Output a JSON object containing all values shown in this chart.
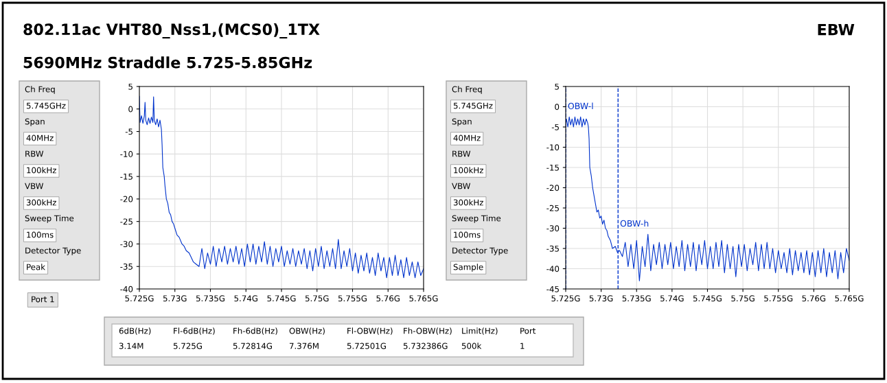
{
  "chart_data": [
    {
      "type": "line",
      "title": "802.11ac VHT80_Nss1,(MCS0)_1TX",
      "subtitle": "5690MHz Straddle 5.725-5.85GHz",
      "annotations": [
        "EBW",
        "Ch Freq",
        "5.745GHz",
        "Span",
        "40MHz",
        "RBW",
        "100kHz",
        "VBW",
        "300kHz",
        "Sweep Time",
        "100ms",
        "Detector Type",
        "Peak",
        "Port 1"
      ],
      "series": [
        {
          "color": "#0033cc",
          "x": [
            5.725,
            5.7251,
            5.7253,
            5.7255,
            5.7257,
            5.7258,
            5.7259,
            5.7261,
            5.7263,
            5.7265,
            5.7267,
            5.7269,
            5.727,
            5.7271,
            5.7273,
            5.7275,
            5.7277,
            5.7279,
            5.7281,
            5.7282,
            5.7283,
            5.7285,
            5.7286,
            5.7288,
            5.729,
            5.7292,
            5.7294,
            5.7296,
            5.7298,
            5.73,
            5.7303,
            5.7306,
            5.731,
            5.7313,
            5.7316,
            5.732,
            5.7323,
            5.7326,
            5.733,
            5.7334,
            5.7338,
            5.7342,
            5.7346,
            5.735,
            5.7354,
            5.7358,
            5.7362,
            5.7366,
            5.737,
            5.7374,
            5.7378,
            5.7382,
            5.7386,
            5.739,
            5.7394,
            5.7398,
            5.7402,
            5.7406,
            5.741,
            5.7414,
            5.7418,
            5.7422,
            5.7426,
            5.743,
            5.7434,
            5.7438,
            5.7442,
            5.7446,
            5.745,
            5.7454,
            5.7458,
            5.7462,
            5.7466,
            5.747,
            5.7474,
            5.7478,
            5.7482,
            5.7486,
            5.749,
            5.7494,
            5.7498,
            5.7502,
            5.7506,
            5.751,
            5.7514,
            5.7518,
            5.7522,
            5.7526,
            5.753,
            5.7534,
            5.7538,
            5.7542,
            5.7546,
            5.755,
            5.7554,
            5.7558,
            5.7562,
            5.7566,
            5.757,
            5.7574,
            5.7578,
            5.7582,
            5.7586,
            5.759,
            5.7594,
            5.7598,
            5.7602,
            5.7606,
            5.761,
            5.7614,
            5.7618,
            5.7622,
            5.7626,
            5.763,
            5.7634,
            5.7638,
            5.7642,
            5.7646,
            5.765
          ],
          "values": [
            2.8,
            -3,
            -1.5,
            -3.2,
            -1.5,
            1.5,
            -2.5,
            -3.5,
            -2,
            -3.2,
            -1.8,
            -3,
            2.7,
            -2.5,
            -3.5,
            -2.2,
            -4,
            -2.5,
            -4.5,
            -8,
            -13,
            -15,
            -17,
            -20,
            -21,
            -23,
            -23.5,
            -25,
            -25.5,
            -26.5,
            -28,
            -28.5,
            -30,
            -30.5,
            -31.5,
            -32,
            -33,
            -34,
            -34.5,
            -35,
            -31,
            -35.5,
            -32,
            -34.5,
            -30.5,
            -35,
            -31,
            -34,
            -30.5,
            -34.5,
            -31,
            -34,
            -30.5,
            -34.5,
            -31,
            -35,
            -30,
            -34,
            -30,
            -34.5,
            -30.5,
            -34,
            -29.5,
            -34.5,
            -30.5,
            -35,
            -31,
            -34,
            -30.5,
            -35,
            -31.5,
            -34.5,
            -31,
            -35,
            -31.5,
            -34.5,
            -31,
            -35.5,
            -31.5,
            -36,
            -31,
            -35,
            -30.5,
            -35.5,
            -31.5,
            -35,
            -31,
            -35.5,
            -29,
            -35.5,
            -31.5,
            -35,
            -31,
            -36,
            -32,
            -36.5,
            -32.5,
            -36,
            -32,
            -36.5,
            -33,
            -37,
            -32,
            -36,
            -33,
            -37.5,
            -33,
            -37,
            -32.5,
            -37,
            -33.5,
            -37.5,
            -33,
            -37,
            -34,
            -37.5,
            -34,
            -37,
            -35.5
          ]
        }
      ],
      "xlim": [
        5.725,
        5.765
      ],
      "xticks": [
        {
          "value": 5.725,
          "label": "5.725G"
        },
        {
          "value": 5.73,
          "label": "5.73G"
        },
        {
          "value": 5.735,
          "label": "5.735G"
        },
        {
          "value": 5.74,
          "label": "5.74G"
        },
        {
          "value": 5.745,
          "label": "5.745G"
        },
        {
          "value": 5.75,
          "label": "5.75G"
        },
        {
          "value": 5.755,
          "label": "5.755G"
        },
        {
          "value": 5.76,
          "label": "5.76G"
        },
        {
          "value": 5.765,
          "label": "5.765G"
        }
      ],
      "ylim": [
        -40,
        5
      ],
      "yticks": [
        -40,
        -35,
        -30,
        -25,
        -20,
        -15,
        -10,
        -5,
        0,
        5
      ],
      "grid": true
    },
    {
      "type": "line",
      "annotations": [
        "Ch Freq",
        "5.745GHz",
        "Span",
        "40MHz",
        "RBW",
        "100kHz",
        "VBW",
        "300kHz",
        "Sweep Time",
        "100ms",
        "Detector Type",
        "Sample",
        "6dB(Hz)",
        "Fl-6dB(Hz)",
        "Fh-6dB(Hz)",
        "OBW(Hz)",
        "Fl-OBW(Hz)",
        "Fh-OBW(Hz)",
        "Limit(Hz)",
        "Port",
        "3.14M",
        "5.725G",
        "5.72814G",
        "7.376M",
        "5.72501G",
        "5.732386G",
        "500k",
        "1",
        {
          "text": "OBW-l",
          "x": 5.72501,
          "y": 0
        },
        {
          "text": "OBW-h",
          "x": 5.732386,
          "y": -29
        }
      ],
      "ref_lines": [
        {
          "axis": "x",
          "value": 5.72501,
          "color": "#0033cc",
          "line_style": "dashed"
        },
        {
          "axis": "x",
          "value": 5.732386,
          "color": "#0033cc",
          "line_style": "dashed"
        }
      ],
      "series": [
        {
          "color": "#0033cc",
          "x": [
            5.725,
            5.7251,
            5.7253,
            5.7255,
            5.7257,
            5.7259,
            5.7261,
            5.7263,
            5.7265,
            5.7267,
            5.7269,
            5.7271,
            5.7273,
            5.7275,
            5.7277,
            5.7279,
            5.7281,
            5.7282,
            5.7283,
            5.7284,
            5.7286,
            5.7288,
            5.729,
            5.7292,
            5.7294,
            5.7296,
            5.7298,
            5.73,
            5.7302,
            5.7304,
            5.7306,
            5.7308,
            5.731,
            5.7313,
            5.7316,
            5.732,
            5.7323,
            5.7326,
            5.733,
            5.7334,
            5.7338,
            5.7342,
            5.7346,
            5.735,
            5.7354,
            5.7358,
            5.7362,
            5.7366,
            5.737,
            5.7374,
            5.7378,
            5.7382,
            5.7386,
            5.739,
            5.7394,
            5.7398,
            5.7402,
            5.7406,
            5.741,
            5.7414,
            5.7418,
            5.7422,
            5.7426,
            5.743,
            5.7434,
            5.7438,
            5.7442,
            5.7446,
            5.745,
            5.7454,
            5.7458,
            5.7462,
            5.7466,
            5.747,
            5.7474,
            5.7478,
            5.7482,
            5.7486,
            5.749,
            5.7494,
            5.7498,
            5.7502,
            5.7506,
            5.751,
            5.7514,
            5.7518,
            5.7522,
            5.7526,
            5.753,
            5.7534,
            5.7538,
            5.7542,
            5.7546,
            5.755,
            5.7554,
            5.7558,
            5.7562,
            5.7566,
            5.757,
            5.7574,
            5.7578,
            5.7582,
            5.7586,
            5.759,
            5.7594,
            5.7598,
            5.7602,
            5.7606,
            5.761,
            5.7614,
            5.7618,
            5.7622,
            5.7626,
            5.763,
            5.7634,
            5.7638,
            5.7642,
            5.7646,
            5.765
          ],
          "values": [
            -4,
            -3,
            -5,
            -2.5,
            -4.5,
            -3,
            -5,
            -2.5,
            -4.5,
            -3,
            -4.5,
            -2.5,
            -5,
            -3,
            -4.5,
            -3,
            -4,
            -5,
            -8,
            -15,
            -17,
            -20,
            -22,
            -24,
            -26,
            -25.5,
            -27.5,
            -27,
            -29,
            -28,
            -30,
            -30.5,
            -32,
            -33,
            -35,
            -34.5,
            -36,
            -35.5,
            -37,
            -33.5,
            -39.5,
            -34,
            -40,
            -33,
            -43,
            -34.5,
            -39.5,
            -31.5,
            -40.5,
            -34,
            -39,
            -33.5,
            -40,
            -34,
            -39,
            -33.5,
            -40,
            -34.5,
            -39.5,
            -33,
            -40.5,
            -34,
            -39.5,
            -33.5,
            -40.5,
            -34,
            -39,
            -33,
            -40,
            -34.5,
            -40,
            -33.5,
            -39.5,
            -33,
            -41,
            -34,
            -40,
            -34.5,
            -42,
            -34,
            -39.5,
            -34,
            -40.5,
            -35,
            -39,
            -33.5,
            -40.5,
            -34,
            -40,
            -33.5,
            -40,
            -35,
            -41,
            -35.5,
            -40,
            -36,
            -41,
            -35,
            -41.5,
            -35.5,
            -40.5,
            -36,
            -41,
            -35.5,
            -41.5,
            -36,
            -42,
            -35.5,
            -41,
            -35,
            -42,
            -36,
            -41,
            -35.5,
            -42.5,
            -36,
            -41,
            -35,
            -38
          ]
        }
      ],
      "xlim": [
        5.725,
        5.765
      ],
      "xticks": [
        {
          "value": 5.725,
          "label": "5.725G"
        },
        {
          "value": 5.73,
          "label": "5.73G"
        },
        {
          "value": 5.735,
          "label": "5.735G"
        },
        {
          "value": 5.74,
          "label": "5.74G"
        },
        {
          "value": 5.745,
          "label": "5.745G"
        },
        {
          "value": 5.75,
          "label": "5.75G"
        },
        {
          "value": 5.755,
          "label": "5.755G"
        },
        {
          "value": 5.76,
          "label": "5.76G"
        },
        {
          "value": 5.765,
          "label": "5.765G"
        }
      ],
      "ylim": [
        -45,
        5
      ],
      "yticks": [
        -45,
        -40,
        -35,
        -30,
        -25,
        -20,
        -15,
        -10,
        -5,
        0,
        5
      ],
      "grid": true
    }
  ]
}
